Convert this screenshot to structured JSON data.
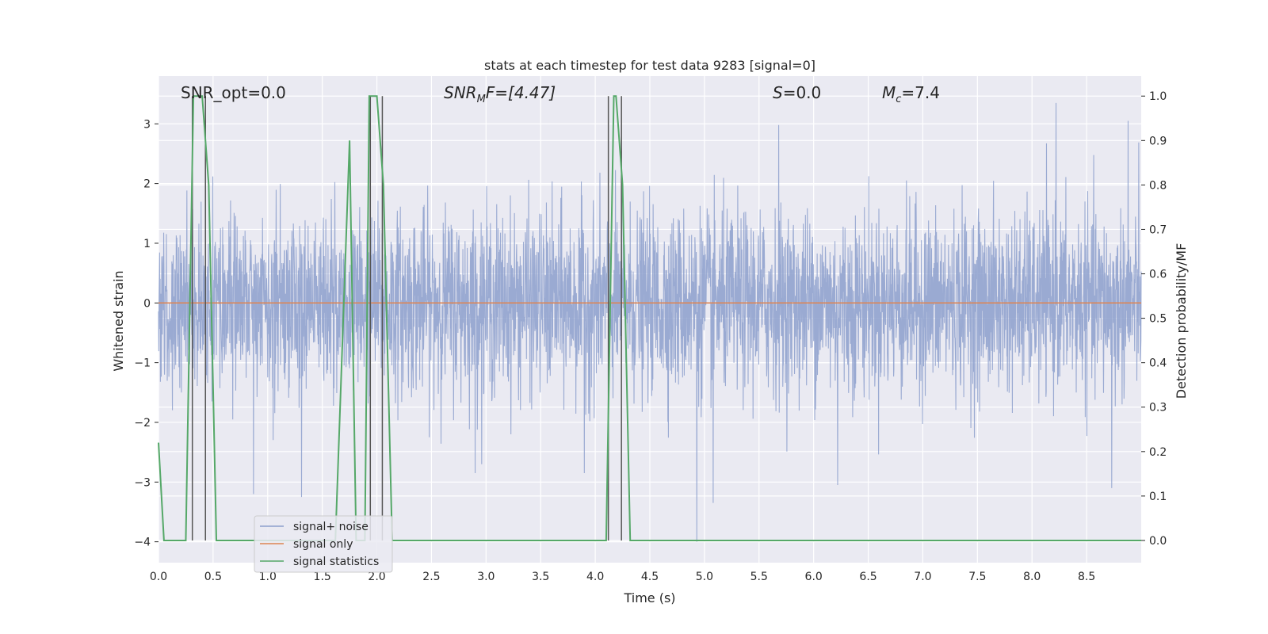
{
  "chart_data": {
    "type": "line",
    "title": "stats at each timestep for test data 9283 [signal=0]",
    "xlabel": "Time (s)",
    "ylabel": "Whitened strain",
    "y2label": "Detection probability/MF",
    "xlim": [
      0.0,
      9.0
    ],
    "ylim": [
      -4.35,
      3.8
    ],
    "y2lim": [
      -0.05,
      1.045
    ],
    "xticks": [
      "0.0",
      "0.5",
      "1.0",
      "1.5",
      "2.0",
      "2.5",
      "3.0",
      "3.5",
      "4.0",
      "4.5",
      "5.0",
      "5.5",
      "6.0",
      "6.5",
      "7.0",
      "7.5",
      "8.0",
      "8.5"
    ],
    "yticks": [
      "−4",
      "−3",
      "−2",
      "−1",
      "0",
      "1",
      "2",
      "3"
    ],
    "y2ticks": [
      "0.0",
      "0.1",
      "0.2",
      "0.3",
      "0.4",
      "0.5",
      "0.6",
      "0.7",
      "0.8",
      "0.9",
      "1.0"
    ],
    "grid": true,
    "legend_position": "lower-left",
    "annotations": {
      "snr_opt": "SNR_opt=0.0",
      "snr_mf_main": "SNR",
      "snr_mf_sub": "M",
      "snr_mf_tail": "F=[4.47]",
      "s_main": "S",
      "s_tail": "=0.0",
      "mc_main": "M",
      "mc_sub": "c",
      "mc_tail": "=7.4"
    },
    "series": [
      {
        "name": "signal+ noise",
        "color": "#8c9fcc",
        "description_values": "whitened noise, mostly within ±1.2 with spikes up to ~3.3 and down to ~-4.0",
        "noise_std": 0.75,
        "spikes": [
          {
            "x": 0.31,
            "y": -2.95
          },
          {
            "x": 0.87,
            "y": -3.2
          },
          {
            "x": 1.31,
            "y": -3.25
          },
          {
            "x": 2.9,
            "y": -2.85
          },
          {
            "x": 3.9,
            "y": -2.85
          },
          {
            "x": 4.93,
            "y": -4.0
          },
          {
            "x": 5.08,
            "y": -3.35
          },
          {
            "x": 6.22,
            "y": -3.05
          },
          {
            "x": 8.22,
            "y": 3.35
          },
          {
            "x": 8.88,
            "y": 3.05
          },
          {
            "x": 8.73,
            "y": -3.1
          },
          {
            "x": 5.68,
            "y": 2.98
          }
        ]
      },
      {
        "name": "signal only",
        "color": "#dd8452",
        "x": [
          0.0,
          9.0
        ],
        "y": [
          0.0,
          0.0
        ]
      },
      {
        "name": "signal statistics",
        "color": "#55a868",
        "axis": "right",
        "x": [
          0.0,
          0.05,
          0.25,
          0.32,
          0.4,
          0.46,
          0.53,
          0.58,
          1.62,
          1.75,
          1.81,
          1.89,
          1.93,
          2.0,
          2.06,
          2.14,
          2.19,
          2.25,
          2.3,
          4.1,
          4.17,
          4.19,
          4.25,
          4.32,
          4.38,
          4.43,
          9.0
        ],
        "y": [
          0.22,
          0.0,
          0.0,
          1.0,
          1.0,
          0.8,
          0.0,
          0.0,
          0.0,
          0.9,
          0.0,
          0.0,
          1.0,
          1.0,
          0.8,
          0.0,
          0.0,
          0.0,
          0.0,
          0.0,
          1.0,
          1.0,
          0.8,
          0.0,
          0.0,
          0.0,
          0.0
        ]
      }
    ],
    "vertical_lines": {
      "color": "#555555",
      "x": [
        0.31,
        0.43,
        1.94,
        2.05,
        4.12,
        4.24
      ],
      "y_range": [
        0.0,
        1.0
      ]
    }
  }
}
